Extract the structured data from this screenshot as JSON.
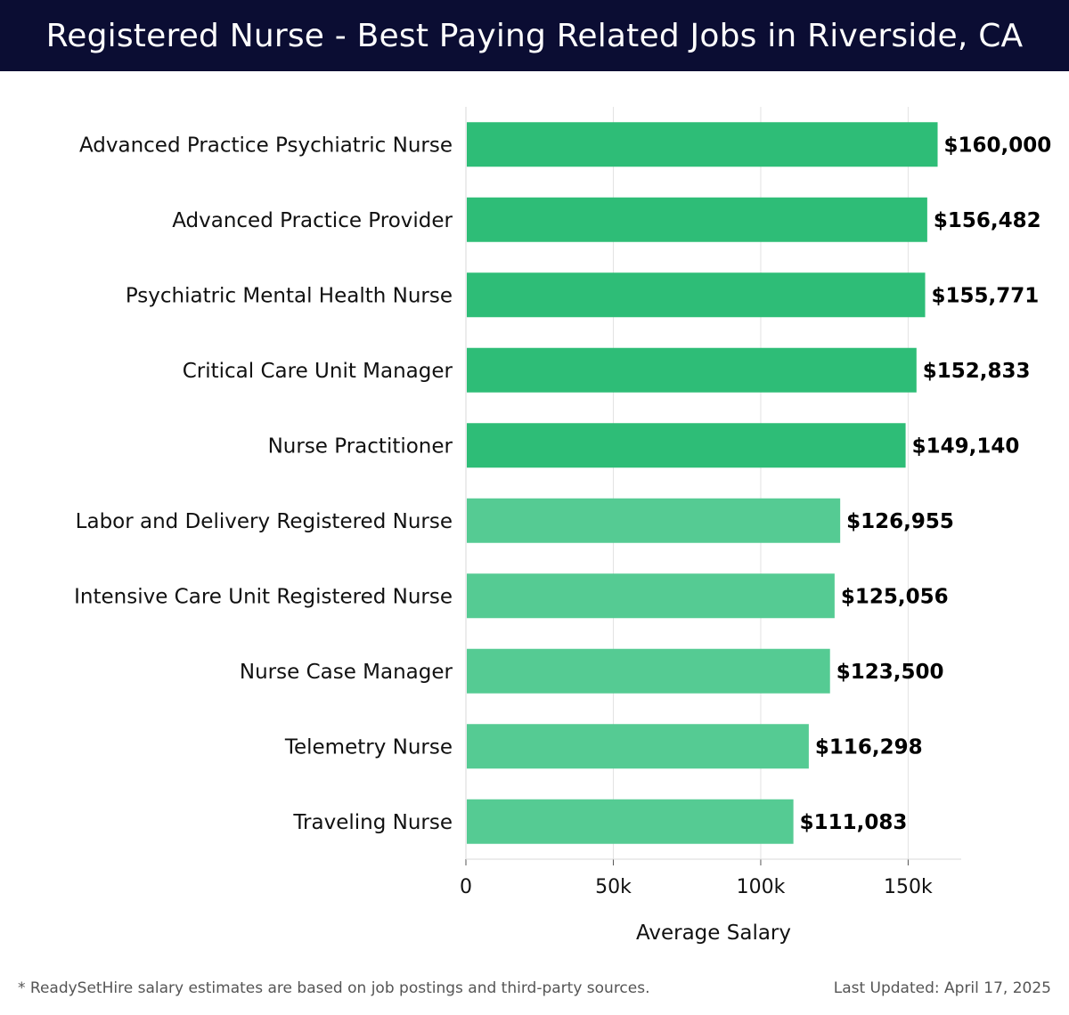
{
  "header": {
    "title": "Registered Nurse - Best Paying Related Jobs in Riverside, CA"
  },
  "chart_data": {
    "type": "bar",
    "orientation": "horizontal",
    "categories": [
      "Advanced Practice Psychiatric Nurse",
      "Advanced Practice Provider",
      "Psychiatric Mental Health Nurse",
      "Critical Care Unit Manager",
      "Nurse Practitioner",
      "Labor and Delivery Registered Nurse",
      "Intensive Care Unit Registered Nurse",
      "Nurse Case Manager",
      "Telemetry Nurse",
      "Traveling Nurse"
    ],
    "values": [
      160000,
      156482,
      155771,
      152833,
      149140,
      126955,
      125056,
      123500,
      116298,
      111083
    ],
    "value_labels": [
      "$160,000",
      "$156,482",
      "$155,771",
      "$152,833",
      "$149,140",
      "$126,955",
      "$125,056",
      "$123,500",
      "$116,298",
      "$111,083"
    ],
    "xlabel": "Average Salary",
    "xlim": [
      0,
      168000
    ],
    "xticks": [
      0,
      50000,
      100000,
      150000
    ],
    "xtick_labels": [
      "0",
      "50k",
      "100k",
      "150k"
    ],
    "grid": "vertical",
    "colors": {
      "top_group": "#2ebd77",
      "other_group": "#55cb93"
    },
    "top_group_count": 5
  },
  "footer": {
    "note": "* ReadySetHire salary estimates are based on job postings and third-party sources.",
    "updated": "Last Updated: April 17, 2025"
  }
}
